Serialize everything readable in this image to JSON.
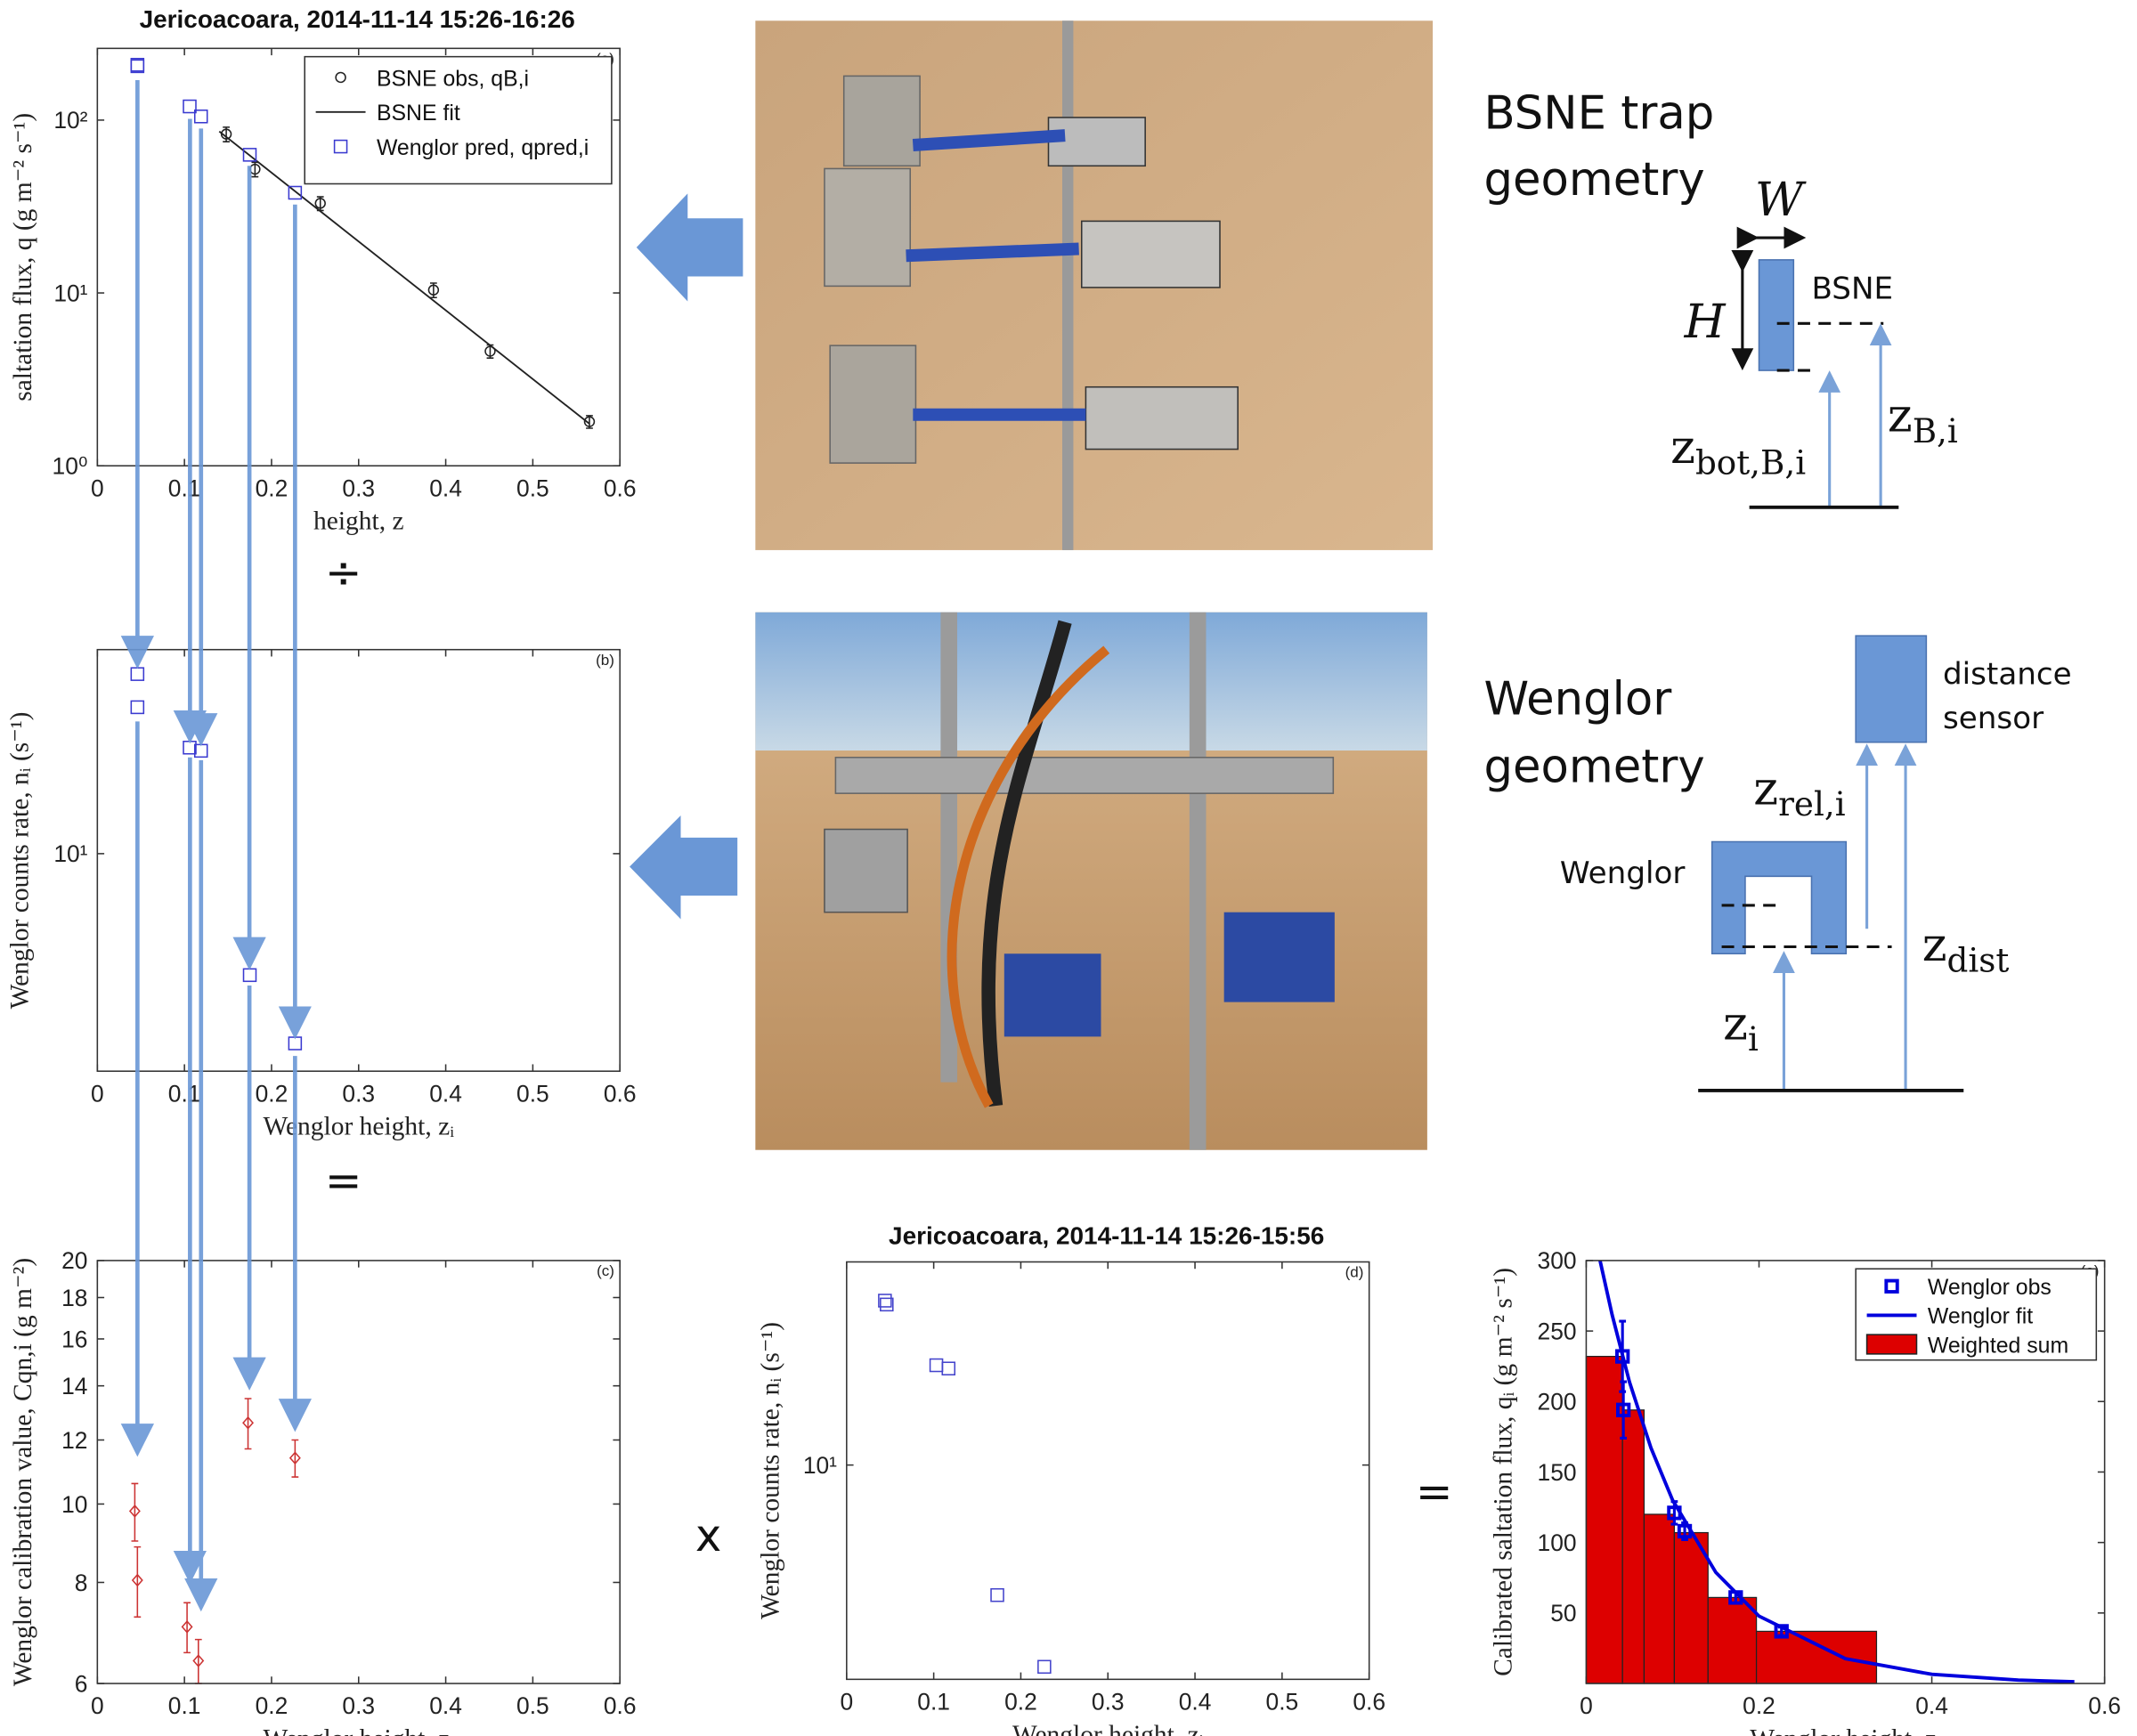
{
  "chart_data": [
    {
      "type": "scatter",
      "title": "Jericoacoara, 2014-11-14 15:26-16:26",
      "panel_label": "(a)",
      "x_label": "height, z",
      "y_label": "saltation flux, q (g m⁻² s⁻¹)",
      "xlim": [
        0,
        0.6
      ],
      "ylim": [
        1,
        260
      ],
      "ylog": true,
      "xticks": [
        0,
        0.1,
        0.2,
        0.3,
        0.4,
        0.5,
        0.6
      ],
      "yticks": [
        {
          "value": 1,
          "label": "10⁰"
        },
        {
          "value": 10,
          "label": "10¹"
        },
        {
          "value": 100,
          "label": "10²"
        }
      ],
      "legend": "upper right",
      "series": [
        {
          "name": "BSNE obs, qB,i",
          "type": "scatter",
          "marker": "circle",
          "color": "#222222",
          "x": [
            0.148,
            0.181,
            0.256,
            0.386,
            0.451,
            0.565
          ],
          "values": [
            83,
            52,
            33,
            10.4,
            4.6,
            1.8
          ],
          "errors": [
            8,
            5,
            3,
            1,
            0.4,
            0.15
          ]
        },
        {
          "name": "BSNE fit",
          "type": "line",
          "color": "#222222",
          "x": [
            0.14,
            0.565
          ],
          "values": [
            86,
            1.75
          ]
        },
        {
          "name": "Wenglor pred, qpred,i",
          "type": "scatter",
          "marker": "square",
          "color": "#3a3ad0",
          "x": [
            0.046,
            0.046,
            0.106,
            0.119,
            0.175,
            0.227
          ],
          "values": [
            209,
            205,
            120,
            105,
            63,
            38
          ]
        }
      ]
    },
    {
      "type": "scatter",
      "panel_label": "(b)",
      "x_label": "Wenglor height, zᵢ",
      "y_label": "Wenglor counts rate, nᵢ (s⁻¹)",
      "xlim": [
        0,
        0.6
      ],
      "ylim": [
        3.1,
        30
      ],
      "ylog": true,
      "xticks": [
        0,
        0.1,
        0.2,
        0.3,
        0.4,
        0.5,
        0.6
      ],
      "yticks": [
        {
          "value": 10,
          "label": "10¹"
        }
      ],
      "series": [
        {
          "type": "scatter",
          "marker": "square",
          "color": "#3a3ad0",
          "x": [
            0.046,
            0.046,
            0.106,
            0.119,
            0.175,
            0.227
          ],
          "values": [
            26.3,
            22,
            17.7,
            17.4,
            5.2,
            3.6
          ]
        }
      ]
    },
    {
      "type": "scatter",
      "panel_label": "(c)",
      "x_label": "Wenglor height, zᵢ",
      "y_label": "Wenglor calibration value, Cqn,i (g m⁻²)",
      "xlim": [
        0,
        0.6
      ],
      "ylim": [
        6,
        20
      ],
      "ylog": true,
      "xticks": [
        0,
        0.1,
        0.2,
        0.3,
        0.4,
        0.5,
        0.6
      ],
      "yticks": [
        6,
        8,
        10,
        12,
        14,
        16,
        18,
        20
      ],
      "series": [
        {
          "type": "scatter",
          "marker": "diamond",
          "color": "#cc3333",
          "x": [
            0.043,
            0.046,
            0.103,
            0.116,
            0.173,
            0.227
          ],
          "values": [
            9.8,
            8.05,
            7.05,
            6.4,
            12.6,
            11.4
          ],
          "errors": [
            0.8,
            0.8,
            0.5,
            0.4,
            0.9,
            0.6
          ]
        }
      ]
    },
    {
      "type": "scatter",
      "title": "Jericoacoara, 2014-11-14 15:26-15:56",
      "panel_label": "(d)",
      "x_label": "Wenglor height, zᵢ",
      "y_label": "Wenglor counts rate, nᵢ (s⁻¹)",
      "xlim": [
        0,
        0.6
      ],
      "ylim": [
        3.16,
        29.8
      ],
      "ylog": true,
      "xticks": [
        0,
        0.1,
        0.2,
        0.3,
        0.4,
        0.5,
        0.6
      ],
      "yticks": [
        {
          "value": 10,
          "label": "10¹"
        }
      ],
      "series": [
        {
          "type": "scatter",
          "marker": "square",
          "color": "#4444cc",
          "x": [
            0.044,
            0.046,
            0.103,
            0.117,
            0.173,
            0.227
          ],
          "values": [
            24.2,
            23.7,
            17.1,
            16.8,
            4.97,
            3.38
          ]
        }
      ]
    },
    {
      "type": "histogram",
      "panel_label": "(e)",
      "x_label": "Wenglor height, zᵢ",
      "y_label": "Calibrated saltation flux, qᵢ (g m⁻² s⁻¹)",
      "xlim": [
        0,
        0.6
      ],
      "ylim": [
        0,
        300
      ],
      "ylog": false,
      "xticks": [
        0,
        0.2,
        0.4,
        0.6
      ],
      "yticks": [
        50,
        100,
        150,
        200,
        250,
        300
      ],
      "legend": "upper right",
      "series": [
        {
          "name": "Wenglor obs",
          "type": "scatter",
          "marker": "square",
          "color": "#0000dd",
          "x": [
            0.042,
            0.043,
            0.102,
            0.114,
            0.173,
            0.226
          ],
          "values": [
            232,
            194,
            121,
            108,
            61,
            37
          ],
          "errors": [
            25,
            20,
            8,
            6,
            4,
            3
          ]
        },
        {
          "name": "Wenglor fit",
          "type": "line",
          "color": "#0000dd",
          "x": [
            0.016,
            0.03,
            0.05,
            0.075,
            0.1,
            0.15,
            0.2,
            0.3,
            0.4,
            0.5,
            0.565
          ],
          "values": [
            300,
            261.5,
            214,
            167,
            130,
            78.8,
            47.8,
            17.6,
            6.5,
            2.4,
            1.2
          ]
        },
        {
          "name": "Weighted sum",
          "type": "histogram",
          "color": "#dd0000",
          "bins": [
            0,
            0.042,
            0.067,
            0.102,
            0.141,
            0.197,
            0.336
          ],
          "values": [
            232,
            194,
            120,
            107,
            61,
            37
          ]
        }
      ]
    }
  ],
  "operators": [
    "÷",
    "=",
    "x",
    "="
  ],
  "diagrams": {
    "bsne": {
      "title": [
        "BSNE trap",
        "geometry"
      ],
      "width": "W",
      "height": "H",
      "trap": "BSNE",
      "z_bot": {
        "symbol": "z",
        "subscript": "bot,B,i"
      },
      "z_mid": {
        "symbol": "z",
        "subscript": "B,i"
      }
    },
    "wenglor": {
      "title": [
        "Wenglor",
        "geometry"
      ],
      "sensor": [
        "distance",
        "sensor"
      ],
      "device": "Wenglor",
      "z_rel": {
        "symbol": "z",
        "subscript": "rel,i"
      },
      "z_dist": {
        "symbol": "z",
        "subscript": "dist"
      },
      "z_i": {
        "symbol": "z",
        "subscript": "i"
      }
    }
  }
}
